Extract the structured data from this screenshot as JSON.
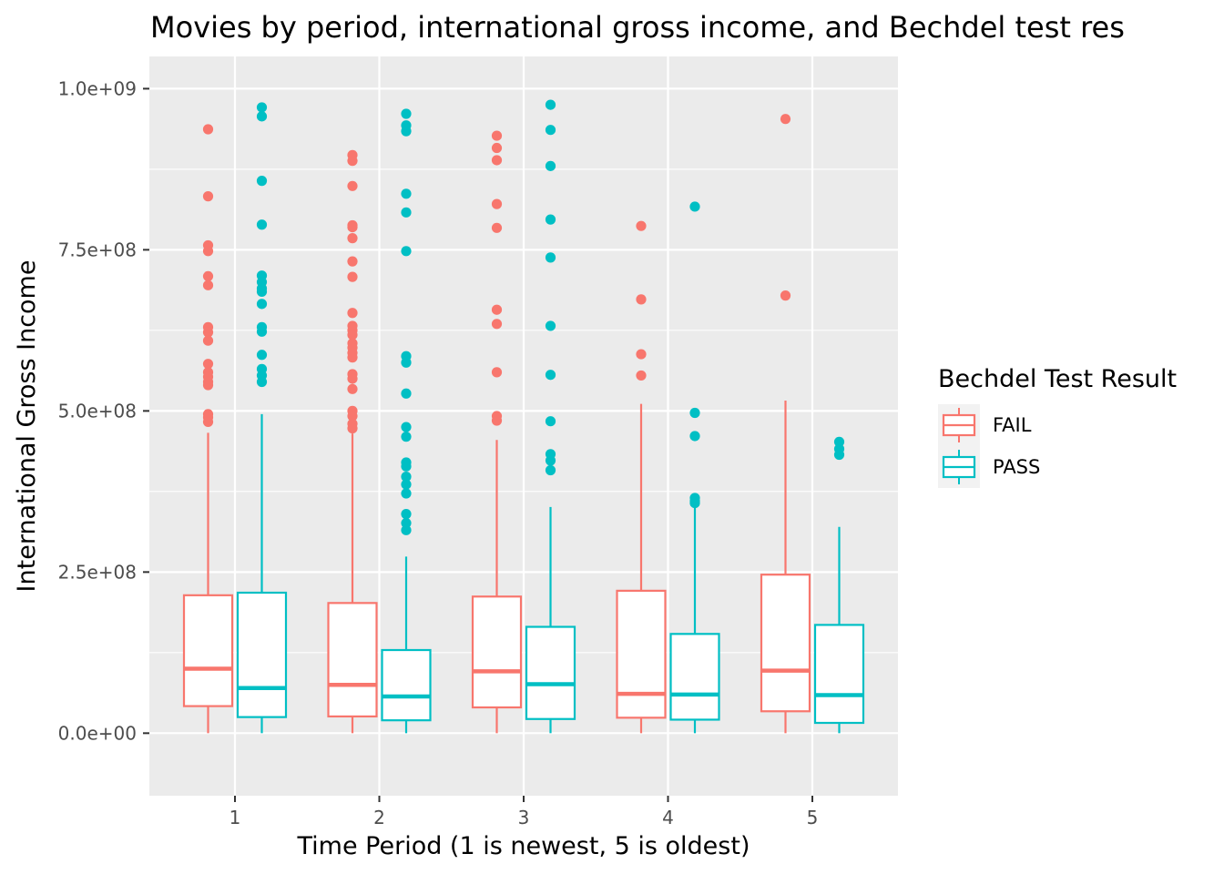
{
  "chart_data": {
    "type": "boxplot",
    "title": "Movies by period, international gross income, and Bechdel test res",
    "xlabel": "Time Period (1 is newest, 5 is oldest)",
    "ylabel": "International Gross Income",
    "categories": [
      "1",
      "2",
      "3",
      "4",
      "5"
    ],
    "ylim": [
      -97000000,
      1050000000
    ],
    "y_ticks": [
      0,
      250000000,
      500000000,
      750000000,
      1000000000
    ],
    "y_tick_labels": [
      "0.0e+00",
      "2.5e+08",
      "5.0e+08",
      "7.5e+08",
      "1.0e+09"
    ],
    "grid": true,
    "legend": {
      "title": "Bechdel Test Result",
      "position": "right"
    },
    "series": [
      {
        "name": "FAIL",
        "color": "#F8766D",
        "boxes": [
          {
            "category": "1",
            "whisker_low": 0,
            "q1": 42000000,
            "median": 100000000,
            "q3": 214000000,
            "whisker_high": 466000000,
            "outliers": [
              937000000,
              833000000,
              757000000,
              748000000,
              709000000,
              695000000,
              630000000,
              622000000,
              609000000,
              573000000,
              560000000,
              553000000,
              545000000,
              540000000,
              495000000,
              490000000,
              483000000
            ]
          },
          {
            "category": "2",
            "whisker_low": 0,
            "q1": 26000000,
            "median": 75000000,
            "q3": 202000000,
            "whisker_high": 465000000,
            "outliers": [
              897000000,
              888000000,
              849000000,
              788000000,
              785000000,
              768000000,
              732000000,
              708000000,
              652000000,
              632000000,
              625000000,
              618000000,
              605000000,
              598000000,
              590000000,
              583000000,
              557000000,
              550000000,
              534000000,
              500000000,
              492000000,
              480000000,
              473000000
            ]
          },
          {
            "category": "3",
            "whisker_low": 0,
            "q1": 40000000,
            "median": 96000000,
            "q3": 212000000,
            "whisker_high": 455000000,
            "outliers": [
              927000000,
              908000000,
              889000000,
              821000000,
              784000000,
              657000000,
              635000000,
              560000000,
              492000000,
              485000000
            ]
          },
          {
            "category": "4",
            "whisker_low": 0,
            "q1": 24000000,
            "median": 61000000,
            "q3": 221000000,
            "whisker_high": 511000000,
            "outliers": [
              787000000,
              673000000,
              588000000,
              555000000
            ]
          },
          {
            "category": "5",
            "whisker_low": 0,
            "q1": 34000000,
            "median": 97000000,
            "q3": 246000000,
            "whisker_high": 516000000,
            "outliers": [
              953000000,
              679000000
            ]
          }
        ]
      },
      {
        "name": "PASS",
        "color": "#00BFC4",
        "boxes": [
          {
            "category": "1",
            "whisker_low": 0,
            "q1": 25000000,
            "median": 70000000,
            "q3": 218000000,
            "whisker_high": 495000000,
            "outliers": [
              971000000,
              957000000,
              857000000,
              789000000,
              710000000,
              700000000,
              690000000,
              685000000,
              666000000,
              630000000,
              623000000,
              587000000,
              565000000,
              555000000,
              545000000
            ]
          },
          {
            "category": "2",
            "whisker_low": 0,
            "q1": 20000000,
            "median": 57000000,
            "q3": 129000000,
            "whisker_high": 274000000,
            "outliers": [
              961000000,
              943000000,
              934000000,
              837000000,
              808000000,
              748000000,
              585000000,
              575000000,
              527000000,
              475000000,
              460000000,
              420000000,
              414000000,
              398000000,
              386000000,
              372000000,
              340000000,
              326000000,
              315000000
            ]
          },
          {
            "category": "3",
            "whisker_low": 0,
            "q1": 22000000,
            "median": 76000000,
            "q3": 165000000,
            "whisker_high": 351000000,
            "outliers": [
              975000000,
              936000000,
              880000000,
              797000000,
              738000000,
              632000000,
              556000000,
              484000000,
              433000000,
              423000000,
              408000000
            ]
          },
          {
            "category": "4",
            "whisker_low": 0,
            "q1": 21000000,
            "median": 60000000,
            "q3": 154000000,
            "whisker_high": 353000000,
            "outliers": [
              817000000,
              497000000,
              461000000,
              365000000,
              360000000,
              357000000
            ]
          },
          {
            "category": "5",
            "whisker_low": 0,
            "q1": 16000000,
            "median": 59000000,
            "q3": 168000000,
            "whisker_high": 320000000,
            "outliers": [
              452000000,
              441000000,
              432000000
            ]
          }
        ]
      }
    ]
  }
}
